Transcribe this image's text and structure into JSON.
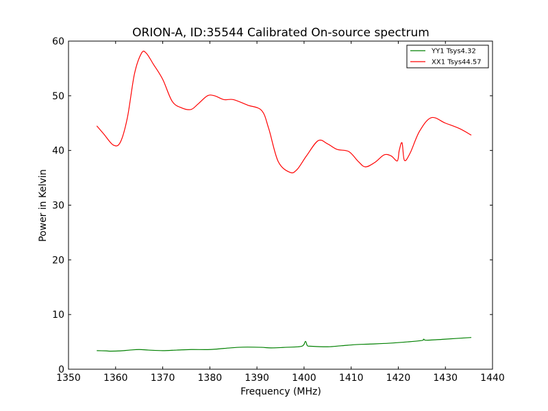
{
  "chart_data": {
    "type": "line",
    "title": "ORION-A, ID:35544 Calibrated On-source spectrum",
    "xlabel": "Frequency (MHz)",
    "ylabel": "Power in Kelvin",
    "xlim": [
      1350,
      1440
    ],
    "ylim": [
      0,
      60
    ],
    "xticks": [
      1350,
      1360,
      1370,
      1380,
      1390,
      1400,
      1410,
      1420,
      1430,
      1440
    ],
    "yticks": [
      0,
      10,
      20,
      30,
      40,
      50,
      60
    ],
    "grid": false,
    "legend_position": "top-right",
    "series": [
      {
        "name": "YY1 Tsys4.32",
        "color": "#008000",
        "x": [
          1356,
          1358,
          1359,
          1361,
          1363,
          1365,
          1367,
          1370,
          1373,
          1376,
          1380,
          1383,
          1386,
          1388,
          1391,
          1393,
          1396,
          1399.5,
          1400.3,
          1400.7,
          1401.5,
          1405,
          1408,
          1411,
          1414,
          1418,
          1422,
          1425,
          1425.4,
          1426,
          1430,
          1435.5
        ],
        "y": [
          3.4,
          3.35,
          3.3,
          3.35,
          3.5,
          3.6,
          3.5,
          3.4,
          3.5,
          3.6,
          3.6,
          3.8,
          4.0,
          4.05,
          4.0,
          3.9,
          4.0,
          4.2,
          5.1,
          4.3,
          4.2,
          4.1,
          4.3,
          4.5,
          4.6,
          4.75,
          5.0,
          5.25,
          5.5,
          5.3,
          5.5,
          5.8
        ]
      },
      {
        "name": "XX1 Tsys44.57",
        "color": "#ff0000",
        "x": [
          1356,
          1357.5,
          1359.5,
          1361,
          1362.5,
          1364,
          1365.5,
          1366.5,
          1368,
          1370,
          1372,
          1374,
          1376,
          1377.5,
          1379.5,
          1381,
          1383,
          1385,
          1388,
          1391,
          1392.5,
          1394.5,
          1397,
          1398.5,
          1400.5,
          1403,
          1405,
          1407,
          1409.5,
          1411.5,
          1413,
          1415,
          1417,
          1418.5,
          1419.8,
          1420.2,
          1420.8,
          1421.3,
          1422.5,
          1424.5,
          1427,
          1430,
          1433,
          1435.5
        ],
        "y": [
          44.5,
          43.0,
          41.0,
          41.5,
          46.0,
          54.0,
          57.8,
          57.8,
          55.8,
          53.0,
          49.0,
          47.8,
          47.5,
          48.5,
          50.0,
          50.0,
          49.3,
          49.3,
          48.3,
          47.3,
          44.0,
          38.0,
          36.0,
          36.5,
          39.0,
          41.8,
          41.2,
          40.2,
          39.8,
          38.0,
          37.0,
          37.8,
          39.2,
          39.0,
          38.1,
          40.0,
          41.4,
          38.2,
          39.5,
          43.5,
          46.0,
          45.0,
          44.0,
          42.8
        ]
      }
    ]
  }
}
